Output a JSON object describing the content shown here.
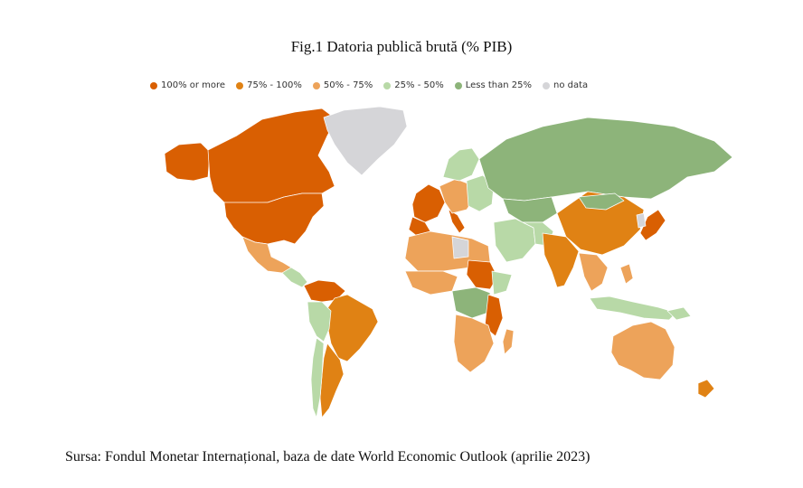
{
  "title": "Fig.1 Datoria publică brută (% PIB)",
  "legend": [
    {
      "label": "100% or more",
      "color": "#d95f02"
    },
    {
      "label": "75% - 100%",
      "color": "#e08214"
    },
    {
      "label": "50% - 75%",
      "color": "#eda35a"
    },
    {
      "label": "25% - 50%",
      "color": "#b8d9a7"
    },
    {
      "label": "Less than 25%",
      "color": "#8db47a"
    },
    {
      "label": "no data",
      "color": "#d5d5d8"
    }
  ],
  "source": "Sursa: Fondul Monetar Internațional, baza de date World Economic Outlook (aprilie 2023)"
}
